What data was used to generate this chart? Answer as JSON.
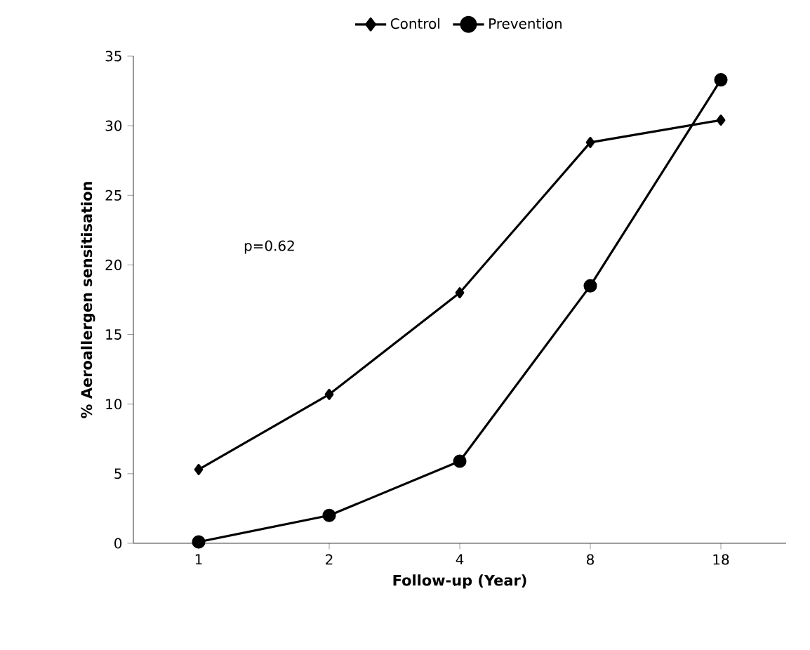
{
  "chart_data": {
    "type": "line",
    "xlabel": "Follow-up (Year)",
    "ylabel": "% Aeroallergen sensitisation",
    "categories": [
      "1",
      "2",
      "4",
      "8",
      "18"
    ],
    "series": [
      {
        "name": "Control",
        "color": "#000000",
        "marker": "diamond",
        "values": [
          5.3,
          10.7,
          18.0,
          28.8,
          30.4
        ]
      },
      {
        "name": "Prevention",
        "color": "#000000",
        "marker": "circle",
        "values": [
          0.1,
          2.0,
          5.9,
          18.5,
          33.3
        ]
      }
    ],
    "ylim": [
      0,
      35
    ],
    "yticks": [
      0,
      5,
      10,
      15,
      20,
      25,
      30,
      35
    ],
    "annotations": [
      "p=0.62"
    ],
    "legend": "top",
    "grid": false
  }
}
